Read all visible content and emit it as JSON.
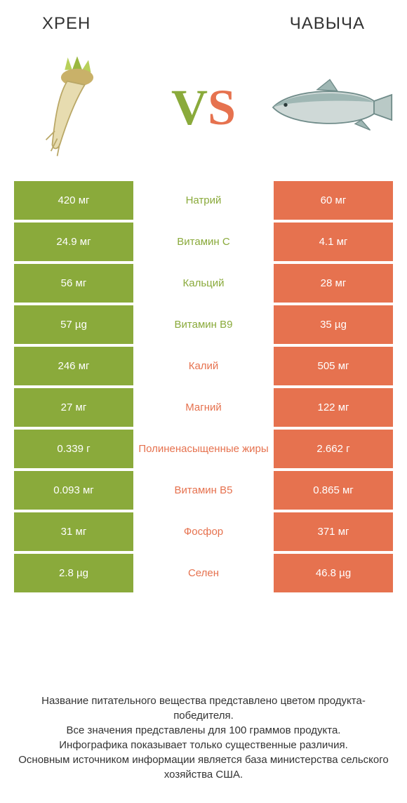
{
  "colors": {
    "left": "#8aaa3b",
    "right": "#e6724f",
    "bg": "#ffffff"
  },
  "header": {
    "left_title": "ХРЕН",
    "right_title": "ЧАВЫЧА",
    "vs_v": "V",
    "vs_s": "S"
  },
  "illustrations": {
    "left_alt": "horseradish-root",
    "right_alt": "chinook-salmon"
  },
  "rows": [
    {
      "left": "420 мг",
      "label": "Натрий",
      "right": "60 мг",
      "winner": "left"
    },
    {
      "left": "24.9 мг",
      "label": "Витамин C",
      "right": "4.1 мг",
      "winner": "left"
    },
    {
      "left": "56 мг",
      "label": "Кальций",
      "right": "28 мг",
      "winner": "left"
    },
    {
      "left": "57 µg",
      "label": "Витамин B9",
      "right": "35 µg",
      "winner": "left"
    },
    {
      "left": "246 мг",
      "label": "Калий",
      "right": "505 мг",
      "winner": "right"
    },
    {
      "left": "27 мг",
      "label": "Магний",
      "right": "122 мг",
      "winner": "right"
    },
    {
      "left": "0.339 г",
      "label": "Полиненасыщенные жиры",
      "right": "2.662 г",
      "winner": "right"
    },
    {
      "left": "0.093 мг",
      "label": "Витамин B5",
      "right": "0.865 мг",
      "winner": "right"
    },
    {
      "left": "31 мг",
      "label": "Фосфор",
      "right": "371 мг",
      "winner": "right"
    },
    {
      "left": "2.8 µg",
      "label": "Селен",
      "right": "46.8 µg",
      "winner": "right"
    }
  ],
  "footer": {
    "line1": "Название питательного вещества представлено цветом продукта-победителя.",
    "line2": "Все значения представлены для 100 граммов продукта.",
    "line3": "Инфографика показывает только существенные различия.",
    "line4": "Основным источником информации является база министерства сельского хозяйства США."
  }
}
